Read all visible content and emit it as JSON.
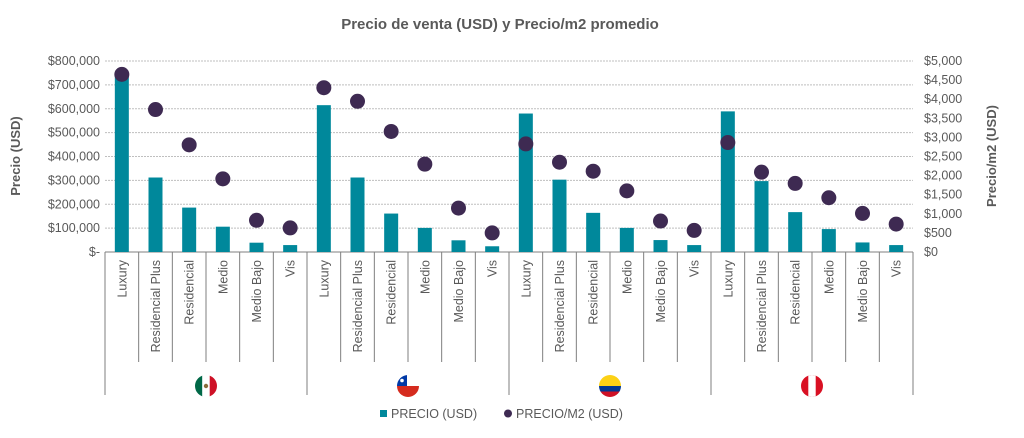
{
  "chart_data": {
    "type": "bar",
    "title": "Precio de venta (USD) y Precio/m2 promedio",
    "ylabel": "Precio (USD)",
    "y2label": "Precio/m2 (USD)",
    "ylim": [
      0,
      800000
    ],
    "y2lim": [
      0,
      5000
    ],
    "yticks": [
      "$-",
      "$100,000",
      "$200,000",
      "$300,000",
      "$400,000",
      "$500,000",
      "$600,000",
      "$700,000",
      "$800,000"
    ],
    "y2ticks": [
      "$0",
      "$500",
      "$1,000",
      "$1,500",
      "$2,000",
      "$2,500",
      "$3,000",
      "$3,500",
      "$4,000",
      "$4,500",
      "$5,000"
    ],
    "grid": true,
    "legend_position": "bottom",
    "groups": [
      {
        "flag": "mexico-flag",
        "categories": [
          "Luxury",
          "Residencial Plus",
          "Residencial",
          "Medio",
          "Medio Bajo",
          "Vis"
        ],
        "precio": [
          740000,
          312000,
          186000,
          106000,
          39000,
          29000
        ],
        "precio_m2": [
          4650,
          3730,
          2805,
          1915,
          830,
          630
        ]
      },
      {
        "flag": "chile-flag",
        "categories": [
          "Luxury",
          "Residencial Plus",
          "Residencial",
          "Medio",
          "Medio Bajo",
          "Vis"
        ],
        "precio": [
          615000,
          312000,
          161000,
          101000,
          49000,
          24000
        ],
        "precio_m2": [
          4300,
          3945,
          3155,
          2300,
          1150,
          500
        ]
      },
      {
        "flag": "colombia-flag",
        "categories": [
          "Luxury",
          "Residencial Plus",
          "Residencial",
          "Medio",
          "Medio Bajo",
          "Vis"
        ],
        "precio": [
          580000,
          303000,
          164000,
          101000,
          50000,
          29000
        ],
        "precio_m2": [
          2830,
          2350,
          2115,
          1600,
          810,
          565
        ]
      },
      {
        "flag": "peru-flag",
        "categories": [
          "Luxury",
          "Residencial Plus",
          "Residencial",
          "Medio",
          "Medio Bajo",
          "Vis"
        ],
        "precio": [
          589000,
          297000,
          167000,
          96000,
          40000,
          29000
        ],
        "precio_m2": [
          2865,
          2090,
          1795,
          1420,
          1010,
          730
        ]
      }
    ],
    "series": [
      {
        "name": "PRECIO (USD)",
        "color": "#00889b",
        "type": "bar"
      },
      {
        "name": "PRECIO/M2 (USD)",
        "color": "#3e2a52",
        "type": "dot"
      }
    ]
  }
}
